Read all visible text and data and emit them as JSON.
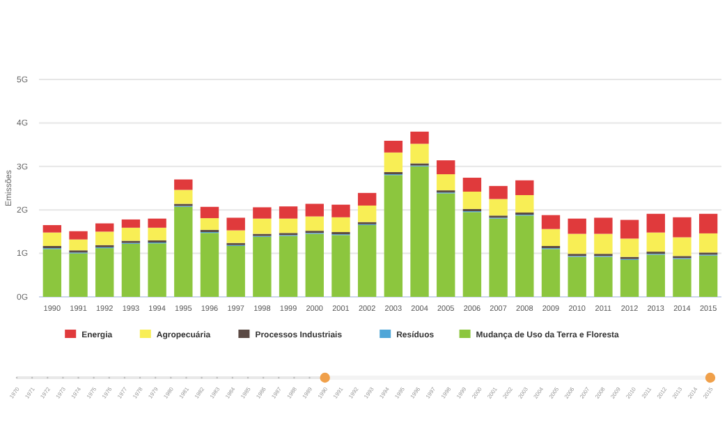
{
  "chart_data": {
    "type": "bar",
    "stacked": true,
    "ylabel": "Emissões",
    "categories": [
      "1990",
      "1991",
      "1992",
      "1993",
      "1994",
      "1995",
      "1996",
      "1997",
      "1998",
      "1999",
      "2000",
      "2001",
      "2002",
      "2003",
      "2004",
      "2005",
      "2006",
      "2007",
      "2008",
      "2009",
      "2010",
      "2011",
      "2012",
      "2013",
      "2014",
      "2015"
    ],
    "series": [
      {
        "name": "Mudança de Uso da Terra e Floresta",
        "color": "#8cc63e",
        "values": [
          1.1,
          1.0,
          1.12,
          1.22,
          1.23,
          2.07,
          1.47,
          1.17,
          1.38,
          1.4,
          1.45,
          1.42,
          1.65,
          2.8,
          3.0,
          2.38,
          1.95,
          1.8,
          1.87,
          1.1,
          0.92,
          0.92,
          0.85,
          0.97,
          0.87,
          0.95
        ]
      },
      {
        "name": "Resíduos",
        "color": "#4fa6d8",
        "values": [
          0.02,
          0.02,
          0.02,
          0.02,
          0.02,
          0.02,
          0.02,
          0.02,
          0.02,
          0.02,
          0.02,
          0.02,
          0.02,
          0.02,
          0.02,
          0.02,
          0.02,
          0.02,
          0.02,
          0.02,
          0.02,
          0.02,
          0.02,
          0.02,
          0.02,
          0.02
        ]
      },
      {
        "name": "Processos Industriais",
        "color": "#5b4a44",
        "values": [
          0.05,
          0.05,
          0.05,
          0.05,
          0.05,
          0.05,
          0.05,
          0.05,
          0.05,
          0.05,
          0.05,
          0.05,
          0.05,
          0.05,
          0.05,
          0.05,
          0.05,
          0.05,
          0.05,
          0.05,
          0.05,
          0.05,
          0.05,
          0.05,
          0.05,
          0.05
        ]
      },
      {
        "name": "Agropecuária",
        "color": "#f8ee55",
        "values": [
          0.31,
          0.25,
          0.31,
          0.3,
          0.29,
          0.32,
          0.27,
          0.29,
          0.35,
          0.33,
          0.33,
          0.34,
          0.38,
          0.45,
          0.45,
          0.37,
          0.4,
          0.38,
          0.4,
          0.39,
          0.46,
          0.46,
          0.42,
          0.44,
          0.43,
          0.44
        ]
      },
      {
        "name": "Energia",
        "color": "#e03a3c",
        "values": [
          0.17,
          0.19,
          0.19,
          0.19,
          0.21,
          0.24,
          0.26,
          0.29,
          0.26,
          0.28,
          0.29,
          0.29,
          0.29,
          0.27,
          0.28,
          0.32,
          0.32,
          0.3,
          0.34,
          0.32,
          0.35,
          0.37,
          0.43,
          0.43,
          0.46,
          0.45
        ]
      }
    ],
    "ylim": [
      0,
      5
    ],
    "yticks": [
      {
        "value": 0,
        "label": "0G"
      },
      {
        "value": 1,
        "label": "1G"
      },
      {
        "value": 2,
        "label": "2G"
      },
      {
        "value": 3,
        "label": "3G"
      },
      {
        "value": 4,
        "label": "4G"
      },
      {
        "value": 5,
        "label": "5G"
      }
    ],
    "grid": "y",
    "legend": "bottom",
    "annotations": [
      "1970",
      "1971",
      "1972",
      "1973",
      "1974",
      "1975",
      "1976",
      "1977",
      "1978",
      "1979",
      "1980",
      "1981",
      "1982",
      "1983",
      "1984",
      "1985",
      "1986",
      "1987",
      "1988",
      "1989",
      "1990",
      "1991",
      "1992",
      "1993",
      "1994",
      "1995",
      "1996",
      "1997",
      "1998",
      "1999",
      "2000",
      "2001",
      "2002",
      "2003",
      "2004",
      "2005",
      "2006",
      "2007",
      "2008",
      "2009",
      "2010",
      "2011",
      "2012",
      "2013",
      "2014",
      "2015"
    ]
  }
}
